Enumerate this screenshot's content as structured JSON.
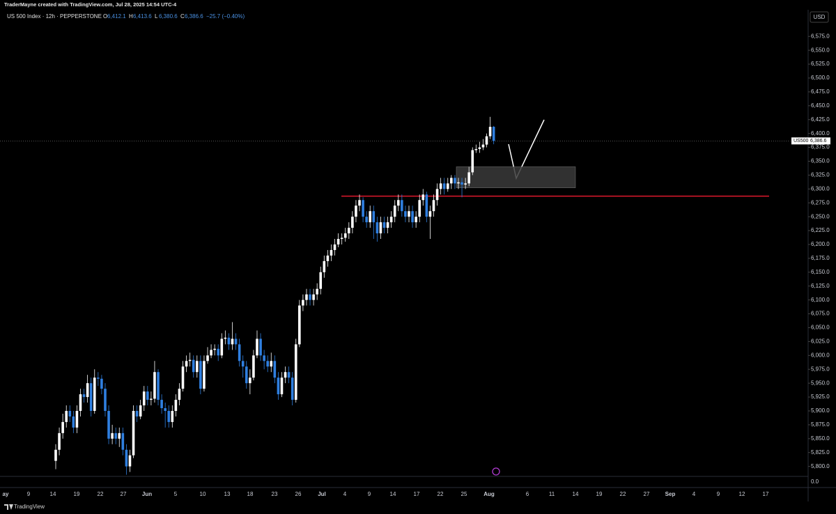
{
  "header": {
    "credit": "TraderMayne created with TradingView.com, Jul 28, 2025 14:54 UTC-4"
  },
  "footer": {
    "brand": "TradingView"
  },
  "chart_data": {
    "type": "candlestick",
    "title": "US 500 Index · 12h · PEPPERSTONE",
    "legend": [
      {
        "label": "O",
        "value": "6,412.1"
      },
      {
        "label": "H",
        "value": "6,413.6"
      },
      {
        "label": "L",
        "value": "6,380.6"
      },
      {
        "label": "C",
        "value": "6,386.6"
      }
    ],
    "change": "−25.7 (−0.40%)",
    "currency": "USD",
    "up_color": "#ffffff",
    "down_color": "#2f7fe0",
    "candles": [
      [
        5810,
        5840,
        5795,
        5830
      ],
      [
        5830,
        5870,
        5820,
        5860
      ],
      [
        5860,
        5895,
        5850,
        5880
      ],
      [
        5880,
        5910,
        5870,
        5900
      ],
      [
        5900,
        5910,
        5880,
        5890
      ],
      [
        5890,
        5900,
        5860,
        5870
      ],
      [
        5870,
        5910,
        5860,
        5900
      ],
      [
        5900,
        5940,
        5890,
        5930
      ],
      [
        5930,
        5940,
        5915,
        5925
      ],
      [
        5925,
        5965,
        5915,
        5950
      ],
      [
        5950,
        5960,
        5890,
        5900
      ],
      [
        5900,
        5975,
        5895,
        5960
      ],
      [
        5960,
        5970,
        5945,
        5958
      ],
      [
        5958,
        5965,
        5930,
        5940
      ],
      [
        5940,
        5950,
        5890,
        5900
      ],
      [
        5900,
        5910,
        5840,
        5850
      ],
      [
        5850,
        5875,
        5840,
        5860
      ],
      [
        5860,
        5870,
        5840,
        5850
      ],
      [
        5850,
        5870,
        5835,
        5860
      ],
      [
        5860,
        5870,
        5820,
        5830
      ],
      [
        5830,
        5840,
        5785,
        5800
      ],
      [
        5800,
        5830,
        5790,
        5820
      ],
      [
        5820,
        5910,
        5815,
        5900
      ],
      [
        5900,
        5910,
        5880,
        5890
      ],
      [
        5890,
        5920,
        5885,
        5910
      ],
      [
        5910,
        5945,
        5900,
        5935
      ],
      [
        5935,
        5945,
        5910,
        5920
      ],
      [
        5920,
        5935,
        5910,
        5922
      ],
      [
        5922,
        5990,
        5915,
        5970
      ],
      [
        5970,
        5975,
        5910,
        5920
      ],
      [
        5920,
        5930,
        5895,
        5905
      ],
      [
        5905,
        5915,
        5870,
        5900
      ],
      [
        5900,
        5910,
        5870,
        5880
      ],
      [
        5880,
        5910,
        5870,
        5900
      ],
      [
        5900,
        5930,
        5890,
        5920
      ],
      [
        5920,
        5950,
        5910,
        5940
      ],
      [
        5940,
        5990,
        5935,
        5980
      ],
      [
        5980,
        6000,
        5970,
        5990
      ],
      [
        5990,
        6005,
        5980,
        5992
      ],
      [
        5992,
        6000,
        5960,
        5970
      ],
      [
        5970,
        6000,
        5960,
        5990
      ],
      [
        5990,
        6000,
        5930,
        5940
      ],
      [
        5940,
        6000,
        5935,
        5990
      ],
      [
        5990,
        6015,
        5985,
        6000
      ],
      [
        6000,
        6020,
        5995,
        6010
      ],
      [
        6010,
        6020,
        6000,
        6012
      ],
      [
        6012,
        6020,
        5990,
        6000
      ],
      [
        6000,
        6040,
        5995,
        6030
      ],
      [
        6030,
        6045,
        6020,
        6032
      ],
      [
        6032,
        6040,
        6010,
        6020
      ],
      [
        6020,
        6060,
        6010,
        6030
      ],
      [
        6030,
        6040,
        6010,
        6020
      ],
      [
        6020,
        6030,
        5980,
        5990
      ],
      [
        5990,
        6000,
        5960,
        5980
      ],
      [
        5980,
        5990,
        5940,
        5950
      ],
      [
        5950,
        5975,
        5930,
        5960
      ],
      [
        5960,
        6010,
        5955,
        6000
      ],
      [
        6000,
        6045,
        5995,
        6030
      ],
      [
        6030,
        6040,
        5990,
        6000
      ],
      [
        6000,
        6010,
        5975,
        5990
      ],
      [
        5990,
        6000,
        5970,
        5980
      ],
      [
        5980,
        6005,
        5970,
        5990
      ],
      [
        5990,
        6000,
        5950,
        5960
      ],
      [
        5960,
        5970,
        5920,
        5930
      ],
      [
        5930,
        5970,
        5925,
        5960
      ],
      [
        5960,
        5980,
        5950,
        5970
      ],
      [
        5970,
        5980,
        5950,
        5960
      ],
      [
        5960,
        5970,
        5910,
        5920
      ],
      [
        5920,
        6030,
        5915,
        6020
      ],
      [
        6020,
        6100,
        6015,
        6090
      ],
      [
        6090,
        6110,
        6080,
        6100
      ],
      [
        6100,
        6120,
        6090,
        6110
      ],
      [
        6110,
        6120,
        6090,
        6100
      ],
      [
        6100,
        6120,
        6090,
        6110
      ],
      [
        6110,
        6130,
        6100,
        6120
      ],
      [
        6120,
        6160,
        6110,
        6150
      ],
      [
        6150,
        6180,
        6140,
        6170
      ],
      [
        6170,
        6190,
        6160,
        6180
      ],
      [
        6180,
        6200,
        6170,
        6190
      ],
      [
        6190,
        6210,
        6180,
        6200
      ],
      [
        6200,
        6220,
        6195,
        6210
      ],
      [
        6210,
        6220,
        6200,
        6212
      ],
      [
        6212,
        6230,
        6205,
        6220
      ],
      [
        6220,
        6240,
        6210,
        6230
      ],
      [
        6230,
        6260,
        6220,
        6250
      ],
      [
        6250,
        6280,
        6240,
        6270
      ],
      [
        6270,
        6290,
        6260,
        6280
      ],
      [
        6280,
        6285,
        6240,
        6250
      ],
      [
        6250,
        6260,
        6230,
        6240
      ],
      [
        6240,
        6270,
        6230,
        6260
      ],
      [
        6260,
        6270,
        6210,
        6240
      ],
      [
        6240,
        6250,
        6205,
        6220
      ],
      [
        6220,
        6250,
        6210,
        6240
      ],
      [
        6240,
        6250,
        6220,
        6230
      ],
      [
        6230,
        6250,
        6220,
        6240
      ],
      [
        6240,
        6260,
        6230,
        6250
      ],
      [
        6250,
        6280,
        6240,
        6270
      ],
      [
        6270,
        6290,
        6260,
        6280
      ],
      [
        6280,
        6290,
        6250,
        6260
      ],
      [
        6260,
        6270,
        6240,
        6250
      ],
      [
        6250,
        6270,
        6240,
        6260
      ],
      [
        6260,
        6270,
        6230,
        6240
      ],
      [
        6240,
        6260,
        6230,
        6250
      ],
      [
        6250,
        6290,
        6240,
        6280
      ],
      [
        6280,
        6300,
        6270,
        6290
      ],
      [
        6290,
        6295,
        6240,
        6250
      ],
      [
        6250,
        6270,
        6210,
        6260
      ],
      [
        6260,
        6290,
        6250,
        6280
      ],
      [
        6280,
        6310,
        6270,
        6300
      ],
      [
        6300,
        6320,
        6290,
        6310
      ],
      [
        6310,
        6320,
        6290,
        6300
      ],
      [
        6300,
        6320,
        6295,
        6310
      ],
      [
        6310,
        6325,
        6300,
        6320
      ],
      [
        6320,
        6325,
        6300,
        6310
      ],
      [
        6310,
        6320,
        6300,
        6312
      ],
      [
        6312,
        6320,
        6285,
        6308
      ],
      [
        6308,
        6320,
        6300,
        6310
      ],
      [
        6310,
        6340,
        6305,
        6330
      ],
      [
        6330,
        6375,
        6325,
        6370
      ],
      [
        6370,
        6380,
        6365,
        6372
      ],
      [
        6372,
        6385,
        6365,
        6375
      ],
      [
        6375,
        6390,
        6370,
        6380
      ],
      [
        6380,
        6400,
        6375,
        6395
      ],
      [
        6395,
        6430,
        6390,
        6412
      ],
      [
        6412.1,
        6413.6,
        6380.6,
        6386.6
      ]
    ],
    "ylim": [
      5782,
      6623
    ],
    "yticks": [
      {
        "value": 5800,
        "label": "5,800.0"
      },
      {
        "value": 5825,
        "label": "5,825.0"
      },
      {
        "value": 5850,
        "label": "5,850.0"
      },
      {
        "value": 5875,
        "label": "5,875.0"
      },
      {
        "value": 5900,
        "label": "5,900.0"
      },
      {
        "value": 5925,
        "label": "5,925.0"
      },
      {
        "value": 5950,
        "label": "5,950.0"
      },
      {
        "value": 5975,
        "label": "5,975.0"
      },
      {
        "value": 6000,
        "label": "6,000.0"
      },
      {
        "value": 6025,
        "label": "6,025.0"
      },
      {
        "value": 6050,
        "label": "6,050.0"
      },
      {
        "value": 6075,
        "label": "6,075.0"
      },
      {
        "value": 6100,
        "label": "6,100.0"
      },
      {
        "value": 6125,
        "label": "6,125.0"
      },
      {
        "value": 6150,
        "label": "6,150.0"
      },
      {
        "value": 6175,
        "label": "6,175.0"
      },
      {
        "value": 6200,
        "label": "6,200.0"
      },
      {
        "value": 6225,
        "label": "6,225.0"
      },
      {
        "value": 6250,
        "label": "6,250.0"
      },
      {
        "value": 6275,
        "label": "6,275.0"
      },
      {
        "value": 6300,
        "label": "6,300.0"
      },
      {
        "value": 6325,
        "label": "6,325.0"
      },
      {
        "value": 6350,
        "label": "6,350.0"
      },
      {
        "value": 6375,
        "label": "6,375.0"
      },
      {
        "value": 6400,
        "label": "6,400.0"
      },
      {
        "value": 6425,
        "label": "6,425.0"
      },
      {
        "value": 6450,
        "label": "6,450.0"
      },
      {
        "value": 6475,
        "label": "6,475.0"
      },
      {
        "value": 6500,
        "label": "6,500.0"
      },
      {
        "value": 6525,
        "label": "6,525.0"
      },
      {
        "value": 6550,
        "label": "6,550.0"
      },
      {
        "value": 6575,
        "label": "6,575.0"
      }
    ],
    "x_axis_labels": [
      "ay",
      "9",
      "14",
      "19",
      "22",
      "27",
      "Jun",
      "5",
      "10",
      "13",
      "18",
      "23",
      "26",
      "Jul",
      "4",
      "9",
      "14",
      "17",
      "22",
      "25",
      "Aug",
      "6",
      "11",
      "14",
      "19",
      "22",
      "27",
      "Sep",
      "4",
      "9",
      "12",
      "17"
    ],
    "last_price": {
      "symbol": "US500",
      "value": 6386.6,
      "label": "6,386.6"
    },
    "drawings": {
      "level": 6287,
      "level_color": "#e0182d",
      "zone": [
        6302,
        6340
      ]
    },
    "lower_pane_label": "0.0",
    "grid": false
  }
}
